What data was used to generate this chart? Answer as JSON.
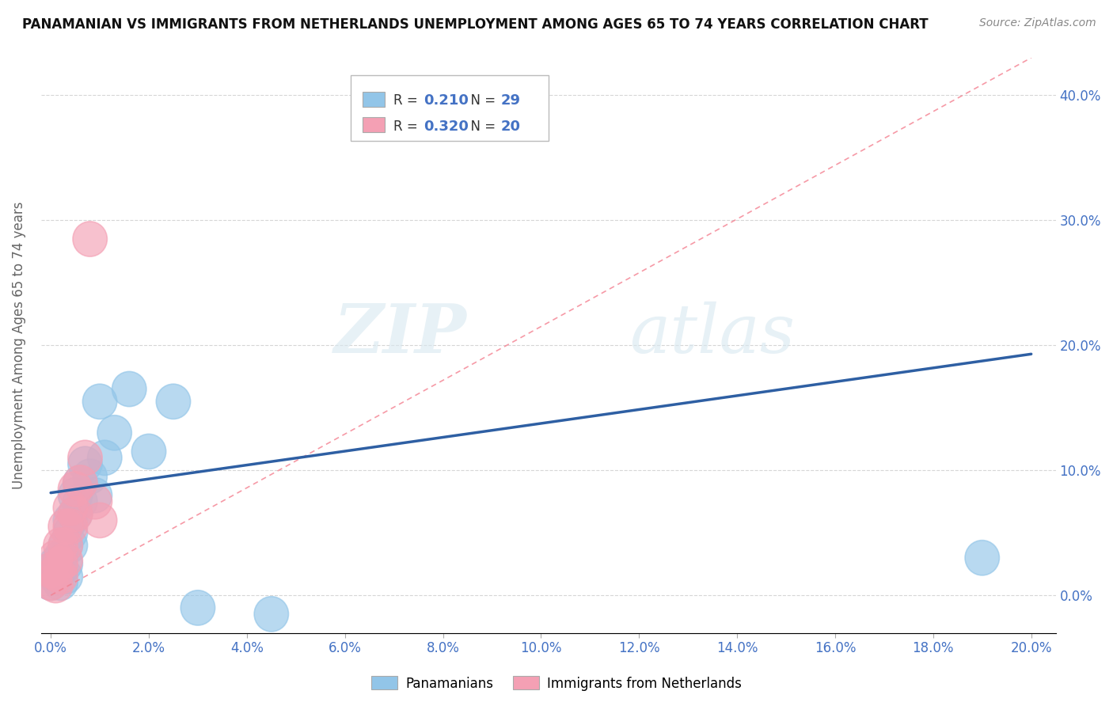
{
  "title": "PANAMANIAN VS IMMIGRANTS FROM NETHERLANDS UNEMPLOYMENT AMONG AGES 65 TO 74 YEARS CORRELATION CHART",
  "source": "Source: ZipAtlas.com",
  "xlim": [
    -0.002,
    0.205
  ],
  "ylim": [
    -0.03,
    0.43
  ],
  "yticks": [
    0.0,
    0.1,
    0.2,
    0.3,
    0.4
  ],
  "xticks": [
    0.0,
    0.02,
    0.04,
    0.06,
    0.08,
    0.1,
    0.12,
    0.14,
    0.16,
    0.18,
    0.2
  ],
  "legend_r1": "0.210",
  "legend_n1": "29",
  "legend_r2": "0.320",
  "legend_n2": "20",
  "panamanian_color": "#92C5E8",
  "netherlands_color": "#F4A0B4",
  "trend_pan_color": "#2E5FA3",
  "trend_neth_color": "#F48090",
  "watermark_zip": "ZIP",
  "watermark_atlas": "atlas",
  "panamanian_points": [
    [
      0.0,
      0.02
    ],
    [
      0.0,
      0.01
    ],
    [
      0.001,
      0.025
    ],
    [
      0.001,
      0.015
    ],
    [
      0.002,
      0.03
    ],
    [
      0.002,
      0.02
    ],
    [
      0.002,
      0.01
    ],
    [
      0.003,
      0.04
    ],
    [
      0.003,
      0.025
    ],
    [
      0.003,
      0.015
    ],
    [
      0.004,
      0.06
    ],
    [
      0.004,
      0.05
    ],
    [
      0.004,
      0.04
    ],
    [
      0.005,
      0.08
    ],
    [
      0.005,
      0.065
    ],
    [
      0.006,
      0.09
    ],
    [
      0.006,
      0.075
    ],
    [
      0.007,
      0.105
    ],
    [
      0.008,
      0.095
    ],
    [
      0.009,
      0.08
    ],
    [
      0.01,
      0.155
    ],
    [
      0.011,
      0.11
    ],
    [
      0.013,
      0.13
    ],
    [
      0.016,
      0.165
    ],
    [
      0.02,
      0.115
    ],
    [
      0.025,
      0.155
    ],
    [
      0.03,
      -0.01
    ],
    [
      0.045,
      -0.015
    ],
    [
      0.19,
      0.03
    ]
  ],
  "netherlands_points": [
    [
      0.0,
      0.02
    ],
    [
      0.0,
      0.01
    ],
    [
      0.001,
      0.03
    ],
    [
      0.001,
      0.018
    ],
    [
      0.001,
      0.008
    ],
    [
      0.002,
      0.04
    ],
    [
      0.002,
      0.025
    ],
    [
      0.002,
      0.015
    ],
    [
      0.003,
      0.055
    ],
    [
      0.003,
      0.04
    ],
    [
      0.003,
      0.028
    ],
    [
      0.004,
      0.07
    ],
    [
      0.004,
      0.055
    ],
    [
      0.005,
      0.085
    ],
    [
      0.005,
      0.065
    ],
    [
      0.006,
      0.09
    ],
    [
      0.007,
      0.11
    ],
    [
      0.008,
      0.285
    ],
    [
      0.009,
      0.075
    ],
    [
      0.01,
      0.06
    ]
  ],
  "trend_pan_x0": 0.0,
  "trend_pan_y0": 0.082,
  "trend_pan_x1": 0.2,
  "trend_pan_y1": 0.193,
  "trend_neth_x0": 0.0,
  "trend_neth_y0": 0.0,
  "trend_neth_x1": 0.2,
  "trend_neth_y1": 0.43
}
